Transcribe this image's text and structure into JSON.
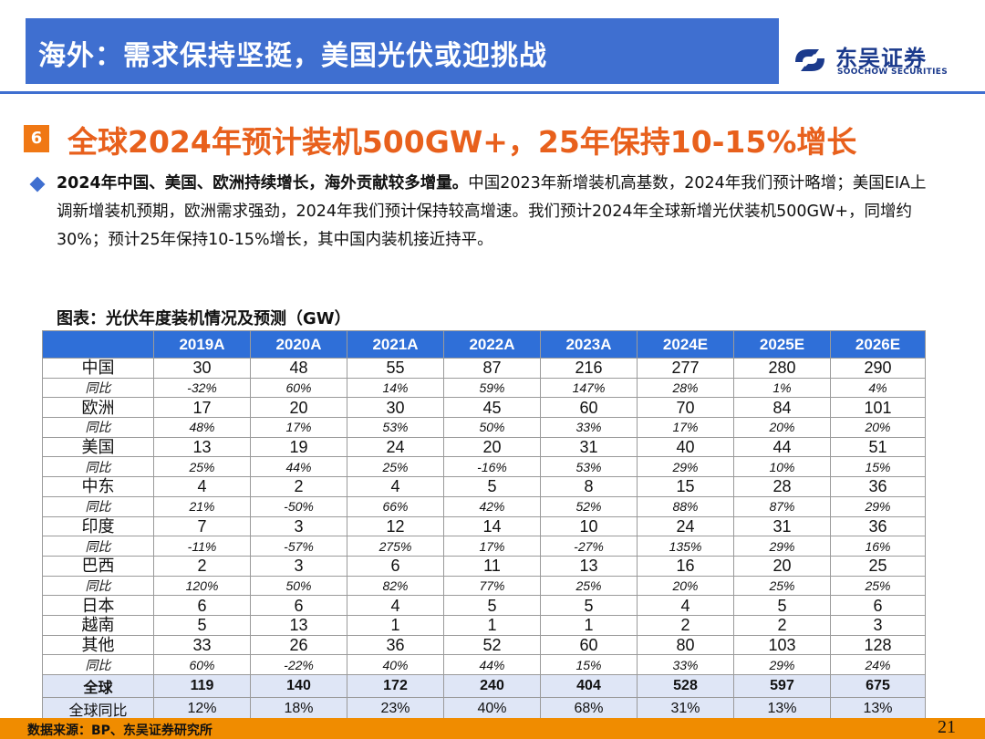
{
  "header": {
    "title": "海外：需求保持坚挺，美国光伏或迎挑战"
  },
  "logo": {
    "cn": "东吴证券",
    "en": "SOOCHOW SECURITIES",
    "color": "#1b3a8c"
  },
  "section": {
    "number": "6",
    "title": "全球2024年预计装机500GW+，25年保持10-15%增长"
  },
  "bullet": {
    "bold": "2024年中国、美国、欧洲持续增长，海外贡献较多增量。",
    "text": "中国2023年新增装机高基数，2024年我们预计略增；美国EIA上调新增装机预期，欧洲需求强劲，2024年我们预计保持较高增速。我们预计2024年全球新增光伏装机500GW+，同增约30%；预计25年保持10-15%增长，其中国内装机接近持平。"
  },
  "table": {
    "title": "图表：光伏年度装机情况及预测（GW）",
    "columns": [
      "",
      "2019A",
      "2020A",
      "2021A",
      "2022A",
      "2023A",
      "2024E",
      "2025E",
      "2026E"
    ],
    "rows": [
      {
        "type": "main",
        "label": "中国",
        "values": [
          "30",
          "48",
          "55",
          "87",
          "216",
          "277",
          "280",
          "290"
        ]
      },
      {
        "type": "yoy",
        "label": "同比",
        "values": [
          "-32%",
          "60%",
          "14%",
          "59%",
          "147%",
          "28%",
          "1%",
          "4%"
        ]
      },
      {
        "type": "main",
        "label": "欧洲",
        "values": [
          "17",
          "20",
          "30",
          "45",
          "60",
          "70",
          "84",
          "101"
        ]
      },
      {
        "type": "yoy",
        "label": "同比",
        "values": [
          "48%",
          "17%",
          "53%",
          "50%",
          "33%",
          "17%",
          "20%",
          "20%"
        ]
      },
      {
        "type": "main",
        "label": "美国",
        "values": [
          "13",
          "19",
          "24",
          "20",
          "31",
          "40",
          "44",
          "51"
        ]
      },
      {
        "type": "yoy",
        "label": "同比",
        "values": [
          "25%",
          "44%",
          "25%",
          "-16%",
          "53%",
          "29%",
          "10%",
          "15%"
        ]
      },
      {
        "type": "main",
        "label": "中东",
        "values": [
          "4",
          "2",
          "4",
          "5",
          "8",
          "15",
          "28",
          "36"
        ]
      },
      {
        "type": "yoy",
        "label": "同比",
        "values": [
          "21%",
          "-50%",
          "66%",
          "42%",
          "52%",
          "88%",
          "87%",
          "29%"
        ]
      },
      {
        "type": "main",
        "label": "印度",
        "values": [
          "7",
          "3",
          "12",
          "14",
          "10",
          "24",
          "31",
          "36"
        ]
      },
      {
        "type": "yoy",
        "label": "同比",
        "values": [
          "-11%",
          "-57%",
          "275%",
          "17%",
          "-27%",
          "135%",
          "29%",
          "16%"
        ]
      },
      {
        "type": "main",
        "label": "巴西",
        "values": [
          "2",
          "3",
          "6",
          "11",
          "13",
          "16",
          "20",
          "25"
        ]
      },
      {
        "type": "yoy",
        "label": "同比",
        "values": [
          "120%",
          "50%",
          "82%",
          "77%",
          "25%",
          "20%",
          "25%",
          "25%"
        ]
      },
      {
        "type": "main",
        "label": "日本",
        "values": [
          "6",
          "6",
          "4",
          "5",
          "5",
          "4",
          "5",
          "6"
        ]
      },
      {
        "type": "main",
        "label": "越南",
        "values": [
          "5",
          "13",
          "1",
          "1",
          "1",
          "2",
          "2",
          "3"
        ]
      },
      {
        "type": "main",
        "label": "其他",
        "values": [
          "33",
          "26",
          "36",
          "52",
          "60",
          "80",
          "103",
          "128"
        ]
      },
      {
        "type": "yoy",
        "label": "同比",
        "values": [
          "60%",
          "-22%",
          "40%",
          "44%",
          "15%",
          "33%",
          "29%",
          "24%"
        ]
      },
      {
        "type": "total",
        "label": "全球",
        "values": [
          "119",
          "140",
          "172",
          "240",
          "404",
          "528",
          "597",
          "675"
        ]
      },
      {
        "type": "totalyoy",
        "label": "全球同比",
        "values": [
          "12%",
          "18%",
          "23%",
          "40%",
          "68%",
          "31%",
          "13%",
          "13%"
        ]
      }
    ]
  },
  "footer": {
    "source": "数据来源：BP、东吴证券研究所",
    "page": "21"
  },
  "colors": {
    "header_blue": "#3f6fd0",
    "table_header": "#2f6fd8",
    "accent_orange": "#f07814",
    "title_orange": "#e8601c",
    "total_row": "#dfe6f6"
  }
}
